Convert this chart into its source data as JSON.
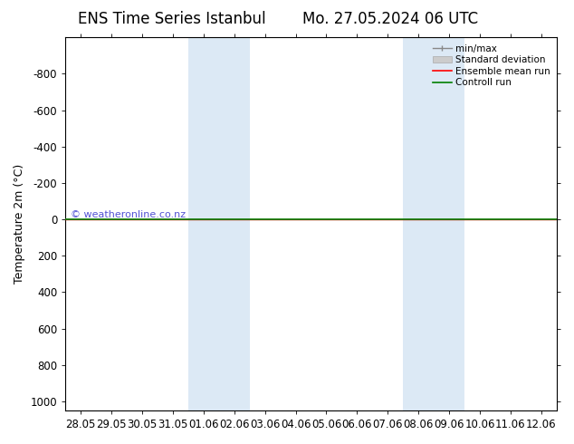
{
  "title_left": "ENS Time Series Istanbul",
  "title_right": "Mo. 27.05.2024 06 UTC",
  "ylabel": "Temperature 2m (°C)",
  "ylim": [
    -1000,
    1050
  ],
  "yticks": [
    -800,
    -600,
    -400,
    -200,
    0,
    200,
    400,
    600,
    800,
    1000
  ],
  "xtick_labels": [
    "28.05",
    "29.05",
    "30.05",
    "31.05",
    "01.06",
    "02.06",
    "03.06",
    "04.06",
    "05.06",
    "06.06",
    "07.06",
    "08.06",
    "09.06",
    "10.06",
    "11.06",
    "12.06"
  ],
  "xtick_positions": [
    0,
    1,
    2,
    3,
    4,
    5,
    6,
    7,
    8,
    9,
    10,
    11,
    12,
    13,
    14,
    15
  ],
  "shaded_bands": [
    {
      "start": 3.5,
      "end": 5.5
    },
    {
      "start": 10.5,
      "end": 12.5
    }
  ],
  "control_run_y": 0,
  "ensemble_mean_y": 0,
  "watermark": "© weatheronline.co.nz",
  "shaded_color": "#dce9f5",
  "bg_color": "#ffffff",
  "title_fontsize": 12,
  "label_fontsize": 9,
  "tick_fontsize": 8.5
}
